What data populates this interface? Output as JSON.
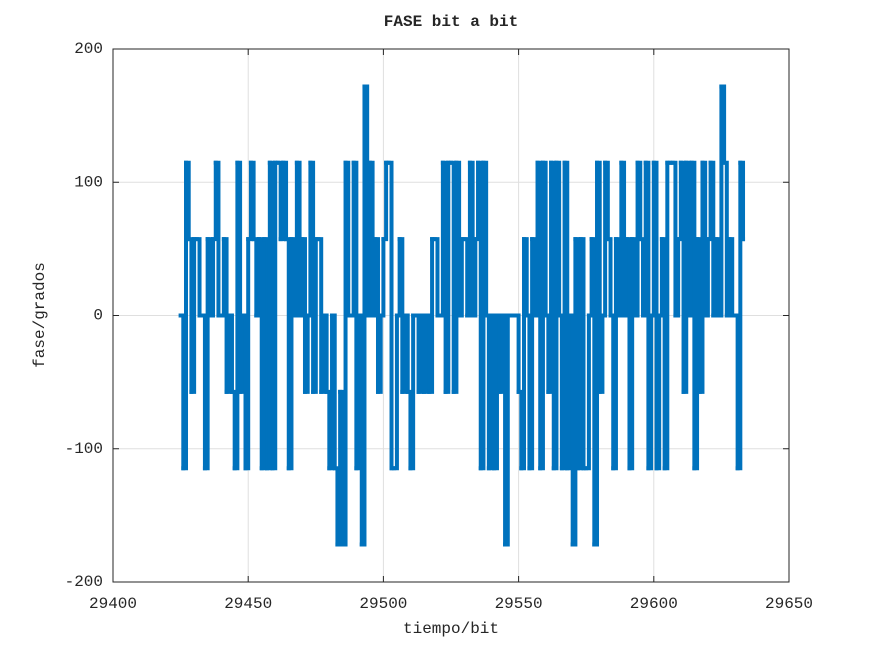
{
  "chart_data": {
    "type": "stairs",
    "title": "FASE bit a bit",
    "xlabel": "tiempo/bit",
    "ylabel": "fase/grados",
    "color": "#0072bd",
    "grid": true,
    "xlim": [
      29400,
      29650
    ],
    "xticks": [
      29400,
      29450,
      29500,
      29550,
      29600,
      29650
    ],
    "ylim": [
      -200,
      200
    ],
    "yticks": [
      -200,
      -100,
      0,
      100,
      200
    ],
    "x": [
      29425,
      29426,
      29427,
      29428,
      29429,
      29430,
      29431,
      29432,
      29433,
      29434,
      29435,
      29436,
      29437,
      29438,
      29439,
      29440,
      29441,
      29442,
      29443,
      29444,
      29445,
      29446,
      29447,
      29448,
      29449,
      29450,
      29451,
      29452,
      29453,
      29454,
      29455,
      29456,
      29457,
      29458,
      29459,
      29460,
      29461,
      29462,
      29463,
      29464,
      29465,
      29466,
      29467,
      29468,
      29469,
      29470,
      29471,
      29472,
      29473,
      29474,
      29475,
      29476,
      29477,
      29478,
      29479,
      29480,
      29481,
      29482,
      29483,
      29484,
      29485,
      29486,
      29487,
      29488,
      29489,
      29490,
      29491,
      29492,
      29493,
      29494,
      29495,
      29496,
      29497,
      29498,
      29499,
      29500,
      29501,
      29502,
      29503,
      29504,
      29505,
      29506,
      29507,
      29508,
      29509,
      29510,
      29511,
      29512,
      29513,
      29514,
      29515,
      29516,
      29517,
      29518,
      29519,
      29520,
      29521,
      29522,
      29523,
      29524,
      29525,
      29526,
      29527,
      29528,
      29529,
      29530,
      29531,
      29532,
      29533,
      29534,
      29535,
      29536,
      29537,
      29538,
      29539,
      29540,
      29541,
      29542,
      29543,
      29544,
      29545,
      29546,
      29547,
      29548,
      29549,
      29550,
      29551,
      29552,
      29553,
      29554,
      29555,
      29556,
      29557,
      29558,
      29559,
      29560,
      29561,
      29562,
      29563,
      29564,
      29565,
      29566,
      29567,
      29568,
      29569,
      29570,
      29571,
      29572,
      29573,
      29574,
      29575,
      29576,
      29577,
      29578,
      29579,
      29580,
      29581,
      29582,
      29583,
      29584,
      29585,
      29586,
      29587,
      29588,
      29589,
      29590,
      29591,
      29592,
      29593,
      29594,
      29595,
      29596,
      29597,
      29598,
      29599,
      29600,
      29601,
      29602,
      29603,
      29604,
      29605,
      29606,
      29607,
      29608,
      29609,
      29610,
      29611,
      29612,
      29613,
      29614,
      29615,
      29616,
      29617,
      29618,
      29619,
      29620,
      29621,
      29622,
      29623,
      29624,
      29625,
      29626,
      29627,
      29628,
      29629,
      29630,
      29631,
      29632,
      29633
    ],
    "values": [
      0,
      -114.6,
      114.6,
      57.3,
      -57.3,
      57.3,
      57.3,
      0,
      0,
      -114.6,
      57.3,
      0,
      57.3,
      114.6,
      0,
      0,
      57.3,
      -57.3,
      0,
      -57.3,
      -114.6,
      114.6,
      -57.3,
      0,
      -114.6,
      57.3,
      114.6,
      57.3,
      0,
      57.3,
      -114.6,
      57.3,
      -114.6,
      114.6,
      -114.6,
      114.6,
      114.6,
      57.3,
      114.6,
      57.3,
      -114.6,
      57.3,
      0,
      114.6,
      0,
      57.3,
      -57.3,
      0,
      114.6,
      -57.3,
      57.3,
      57.3,
      -57.3,
      0,
      -57.3,
      -114.6,
      0,
      -114.6,
      -171.9,
      -57.3,
      -171.9,
      114.6,
      0,
      0,
      114.6,
      -114.6,
      0,
      -171.9,
      171.9,
      0,
      114.6,
      0,
      57.3,
      -57.3,
      0,
      57.3,
      114.6,
      114.6,
      -114.6,
      -114.6,
      0,
      57.3,
      -57.3,
      0,
      -57.3,
      -114.6,
      0,
      0,
      -57.3,
      0,
      -57.3,
      0,
      -57.3,
      57.3,
      57.3,
      0,
      0,
      114.6,
      -57.3,
      114.6,
      114.6,
      -57.3,
      114.6,
      0,
      57.3,
      57.3,
      0,
      114.6,
      0,
      57.3,
      114.6,
      -114.6,
      114.6,
      0,
      -114.6,
      0,
      -114.6,
      0,
      -57.3,
      0,
      -171.9,
      0,
      0,
      0,
      0,
      -57.3,
      -114.6,
      57.3,
      0,
      -114.6,
      57.3,
      0,
      114.6,
      -114.6,
      114.6,
      0,
      -57.3,
      114.6,
      -114.6,
      114.6,
      0,
      -114.6,
      114.6,
      -114.6,
      0,
      -171.9,
      57.3,
      -114.6,
      57.3,
      -114.6,
      -114.6,
      0,
      57.3,
      -171.9,
      114.6,
      -57.3,
      0,
      114.6,
      57.3,
      0,
      -114.6,
      57.3,
      0,
      114.6,
      0,
      57.3,
      -114.6,
      57.3,
      0,
      114.6,
      57.3,
      0,
      114.6,
      -114.6,
      0,
      114.6,
      -114.6,
      0,
      57.3,
      -114.6,
      114.6,
      114.6,
      114.6,
      0,
      57.3,
      114.6,
      -57.3,
      114.6,
      0,
      114.6,
      -114.6,
      57.3,
      -57.3,
      114.6,
      0,
      57.3,
      114.6,
      0,
      57.3,
      0,
      171.9,
      114.6,
      0,
      57.3,
      0,
      0,
      -114.6,
      114.6,
      57.3
    ]
  }
}
